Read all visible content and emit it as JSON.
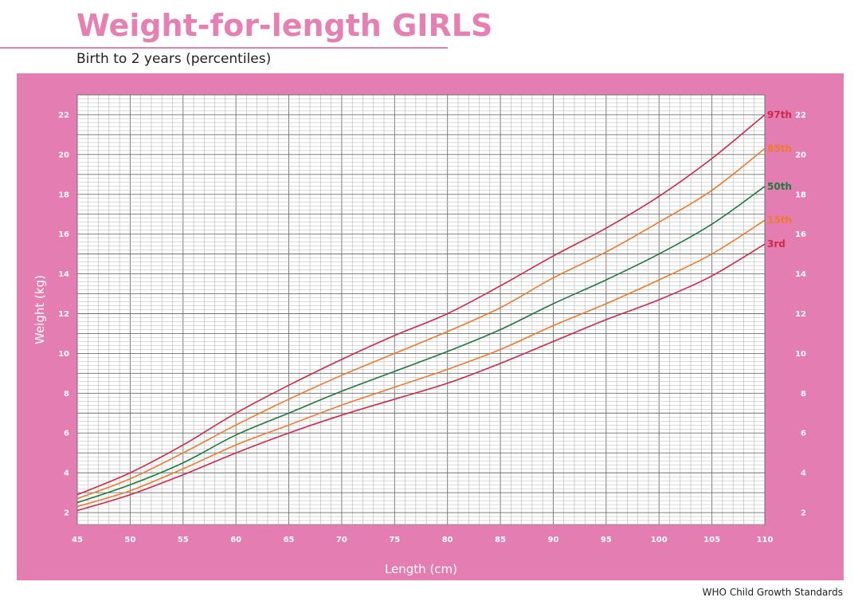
{
  "header": {
    "title": "Weight-for-length GIRLS",
    "subtitle": "Birth to 2 years (percentiles)"
  },
  "footer": {
    "credit": "WHO Child Growth Standards"
  },
  "colors": {
    "title": "#e67fb2",
    "panel": "#e47db1",
    "grid_minor": "#b3b3b3",
    "grid_major": "#6e6e6e",
    "p3": "#d0284a",
    "p15": "#ee7a2c",
    "p50": "#1e7a3e",
    "p85": "#ee7a2c",
    "p97": "#d0284a"
  },
  "chart_data": {
    "type": "line",
    "title": "Weight-for-length GIRLS",
    "subtitle": "Birth to 2 years (percentiles)",
    "xlabel": "Length (cm)",
    "ylabel": "Weight (kg)",
    "xlim": [
      45,
      110
    ],
    "ylim": [
      1.4,
      23
    ],
    "x_ticks": [
      45,
      50,
      55,
      60,
      65,
      70,
      75,
      80,
      85,
      90,
      95,
      100,
      105,
      110
    ],
    "y_ticks": [
      2,
      4,
      6,
      8,
      10,
      12,
      14,
      16,
      18,
      20,
      22
    ],
    "grid": true,
    "legend": "labels at right end of each line",
    "x": [
      45,
      50,
      55,
      60,
      65,
      70,
      75,
      80,
      85,
      90,
      95,
      100,
      105,
      110
    ],
    "series": [
      {
        "name": "3rd",
        "color_key": "p3",
        "values": [
          2.1,
          2.9,
          3.9,
          5.0,
          6.0,
          6.9,
          7.7,
          8.5,
          9.5,
          10.6,
          11.7,
          12.7,
          13.9,
          15.5
        ]
      },
      {
        "name": "15th",
        "color_key": "p15",
        "values": [
          2.3,
          3.1,
          4.2,
          5.4,
          6.4,
          7.4,
          8.3,
          9.2,
          10.2,
          11.4,
          12.5,
          13.7,
          15.0,
          16.7
        ]
      },
      {
        "name": "50th",
        "color_key": "p50",
        "values": [
          2.5,
          3.4,
          4.5,
          5.9,
          7.0,
          8.1,
          9.1,
          10.1,
          11.2,
          12.5,
          13.7,
          15.0,
          16.5,
          18.4
        ]
      },
      {
        "name": "85th",
        "color_key": "p85",
        "values": [
          2.7,
          3.7,
          5.0,
          6.4,
          7.7,
          8.9,
          10.0,
          11.1,
          12.3,
          13.8,
          15.1,
          16.6,
          18.2,
          20.3
        ]
      },
      {
        "name": "97th",
        "color_key": "p97",
        "values": [
          2.9,
          4.0,
          5.4,
          7.0,
          8.4,
          9.7,
          10.9,
          12.0,
          13.4,
          14.9,
          16.3,
          17.9,
          19.8,
          22.0
        ]
      }
    ]
  }
}
